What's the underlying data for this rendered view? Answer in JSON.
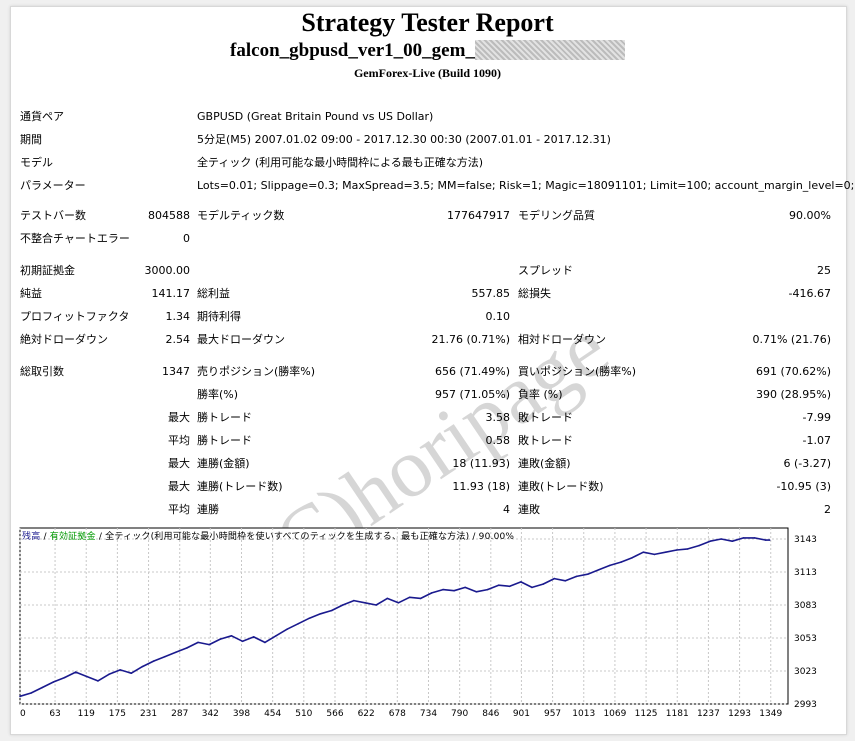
{
  "report": {
    "title": "Strategy Tester Report",
    "subtitle": "falcon_gbpusd_ver1_00_gem_",
    "server": "GemForex-Live (Build 1090)"
  },
  "info": [
    {
      "label": "通貨ペア",
      "value": "GBPUSD (Great Britain Pound vs US Dollar)"
    },
    {
      "label": "期間",
      "value": "5分足(M5) 2007.01.02 09:00 - 2017.12.30 00:30 (2007.01.01 - 2017.12.31)"
    },
    {
      "label": "モデル",
      "value": "全ティック (利用可能な最小時間枠による最も正確な方法)"
    },
    {
      "label": "パラメーター",
      "value": "Lots=0.01; Slippage=0.3; MaxSpread=3.5; MM=false; Risk=1; Magic=18091101; Limit=100; account_margin_level=0;"
    }
  ],
  "stats": {
    "bars_label": "テストバー数",
    "bars": "804588",
    "ticks_label": "モデルティック数",
    "ticks": "177647917",
    "quality_label": "モデリング品質",
    "quality": "90.00%",
    "mismatch_label": "不整合チャートエラー",
    "mismatch": "0",
    "deposit_label": "初期証拠金",
    "deposit": "3000.00",
    "spread_label": "スプレッド",
    "spread": "25",
    "net_label": "純益",
    "net": "141.17",
    "gross_profit_label": "総利益",
    "gross_profit": "557.85",
    "gross_loss_label": "総損失",
    "gross_loss": "-416.67",
    "pf_label": "プロフィットファクタ",
    "pf": "1.34",
    "expected_label": "期待利得",
    "expected": "0.10",
    "abs_dd_label": "絶対ドローダウン",
    "abs_dd": "2.54",
    "max_dd_label": "最大ドローダウン",
    "max_dd": "21.76 (0.71%)",
    "rel_dd_label": "相対ドローダウン",
    "rel_dd": "0.71% (21.76)",
    "trades_label": "総取引数",
    "trades": "1347",
    "short_label": "売りポジション(勝率%)",
    "short": "656 (71.49%)",
    "long_label": "買いポジション(勝率%)",
    "long": "691 (70.62%)",
    "winrate_label": "勝率(%)",
    "winrate": "957 (71.05%)",
    "lossrate_label": "負率 (%)",
    "lossrate": "390 (28.95%)",
    "max_label": "最大",
    "avg_label": "平均",
    "win_trade_label": "勝トレード",
    "loss_trade_label": "敗トレード",
    "largest_win": "3.58",
    "largest_loss": "-7.99",
    "avg_win": "0.58",
    "avg_loss": "-1.07",
    "consec_win_money_label": "連勝(金額)",
    "consec_win_money": "18 (11.93)",
    "consec_loss_money_label": "連敗(金額)",
    "consec_loss_money": "6 (-3.27)",
    "consec_win_count_label": "連勝(トレード数)",
    "consec_win_count": "11.93 (18)",
    "consec_loss_count_label": "連敗(トレード数)",
    "consec_loss_count": "-10.95 (3)",
    "avg_consec_win_label": "連勝",
    "avg_consec_win": "4",
    "avg_consec_loss_label": "連敗",
    "avg_consec_loss": "2"
  },
  "watermark": "(C)horipage",
  "colors": {
    "balance": "#1a1a8e",
    "equity": "#009900",
    "grid": "#c8c8c8"
  },
  "chart_data": {
    "type": "line",
    "caption": {
      "balance": "残高",
      "equity": "有効証拠金",
      "model": "全ティック(利用可能な最小時間枠を使いすべてのティックを生成する、最も正確な方法)",
      "quality": "90.00%"
    },
    "xlim": [
      0,
      1380
    ],
    "ylim": [
      2993,
      3153
    ],
    "x_ticks": [
      0,
      63,
      119,
      175,
      231,
      287,
      342,
      398,
      454,
      510,
      566,
      622,
      678,
      734,
      790,
      846,
      901,
      957,
      1013,
      1069,
      1125,
      1181,
      1237,
      1293,
      1349
    ],
    "y_ticks": [
      2993,
      3023,
      3053,
      3083,
      3113,
      3143
    ],
    "series": [
      {
        "x": [
          0,
          20,
          40,
          60,
          80,
          100,
          120,
          140,
          160,
          180,
          200,
          220,
          240,
          260,
          280,
          300,
          320,
          340,
          360,
          380,
          400,
          420,
          440,
          460,
          480,
          500,
          520,
          540,
          560,
          580,
          600,
          620,
          640,
          660,
          680,
          700,
          720,
          740,
          760,
          780,
          800,
          820,
          840,
          860,
          880,
          900,
          920,
          940,
          960,
          980,
          1000,
          1020,
          1040,
          1060,
          1080,
          1100,
          1120,
          1140,
          1160,
          1180,
          1200,
          1220,
          1240,
          1260,
          1280,
          1300,
          1320,
          1340,
          1347
        ],
        "values": [
          3000,
          3003,
          3008,
          3013,
          3017,
          3022,
          3018,
          3014,
          3020,
          3024,
          3021,
          3027,
          3032,
          3036,
          3040,
          3044,
          3049,
          3047,
          3052,
          3055,
          3050,
          3054,
          3049,
          3055,
          3061,
          3066,
          3071,
          3075,
          3078,
          3083,
          3087,
          3085,
          3083,
          3089,
          3085,
          3090,
          3089,
          3094,
          3097,
          3096,
          3099,
          3095,
          3097,
          3101,
          3100,
          3104,
          3099,
          3102,
          3107,
          3105,
          3109,
          3111,
          3115,
          3119,
          3122,
          3126,
          3131,
          3129,
          3131,
          3133,
          3134,
          3137,
          3141,
          3143,
          3141,
          3144,
          3144,
          3142,
          3142
        ]
      }
    ]
  }
}
